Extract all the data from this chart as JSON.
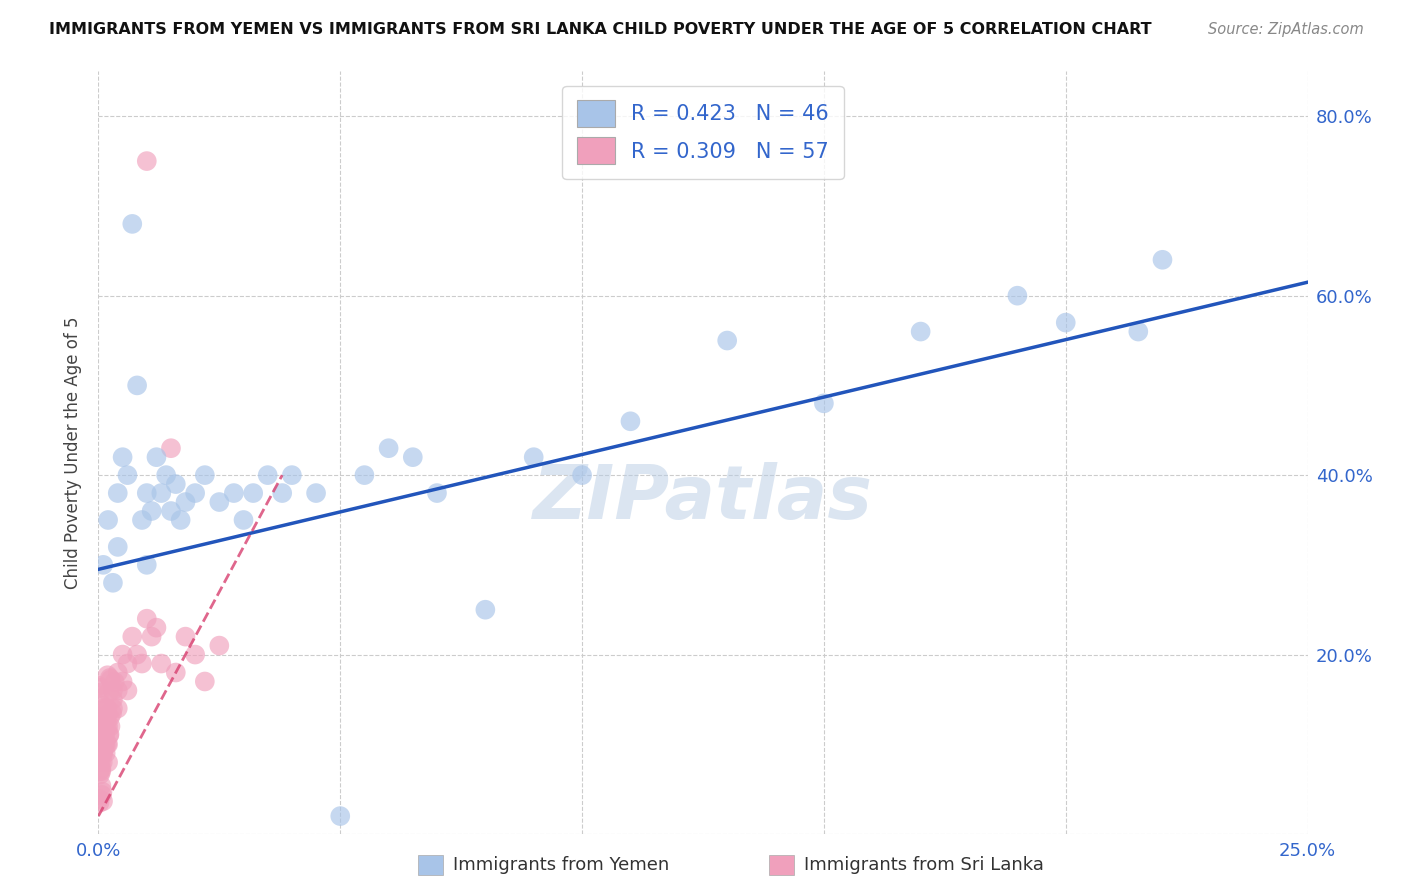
{
  "title": "IMMIGRANTS FROM YEMEN VS IMMIGRANTS FROM SRI LANKA CHILD POVERTY UNDER THE AGE OF 5 CORRELATION CHART",
  "source": "Source: ZipAtlas.com",
  "ylabel": "Child Poverty Under the Age of 5",
  "xlim": [
    0.0,
    0.25
  ],
  "ylim": [
    0.0,
    0.85
  ],
  "xtick_positions": [
    0.0,
    0.05,
    0.1,
    0.15,
    0.2,
    0.25
  ],
  "xtick_labels": [
    "0.0%",
    "",
    "",
    "",
    "",
    "25.0%"
  ],
  "ytick_positions": [
    0.0,
    0.2,
    0.4,
    0.6,
    0.8
  ],
  "ytick_labels": [
    "",
    "20.0%",
    "40.0%",
    "60.0%",
    "80.0%"
  ],
  "yemen_R": 0.423,
  "yemen_N": 46,
  "srilanka_R": 0.309,
  "srilanka_N": 57,
  "yemen_color": "#a8c4e8",
  "srilanka_color": "#f0a0bc",
  "yemen_line_color": "#2255bb",
  "srilanka_line_color": "#d84070",
  "watermark": "ZIPatlas",
  "yemen_x": [
    0.001,
    0.002,
    0.003,
    0.004,
    0.004,
    0.005,
    0.006,
    0.007,
    0.008,
    0.009,
    0.01,
    0.01,
    0.011,
    0.012,
    0.013,
    0.014,
    0.015,
    0.016,
    0.017,
    0.018,
    0.02,
    0.022,
    0.025,
    0.028,
    0.03,
    0.032,
    0.035,
    0.038,
    0.04,
    0.045,
    0.05,
    0.055,
    0.06,
    0.065,
    0.07,
    0.08,
    0.09,
    0.1,
    0.11,
    0.13,
    0.15,
    0.17,
    0.19,
    0.2,
    0.215,
    0.22
  ],
  "yemen_y": [
    0.3,
    0.35,
    0.28,
    0.38,
    0.32,
    0.42,
    0.4,
    0.68,
    0.5,
    0.35,
    0.38,
    0.3,
    0.36,
    0.42,
    0.38,
    0.4,
    0.36,
    0.39,
    0.35,
    0.37,
    0.38,
    0.4,
    0.37,
    0.38,
    0.35,
    0.38,
    0.4,
    0.38,
    0.4,
    0.38,
    0.02,
    0.4,
    0.43,
    0.42,
    0.38,
    0.25,
    0.42,
    0.4,
    0.46,
    0.55,
    0.48,
    0.56,
    0.6,
    0.57,
    0.56,
    0.64
  ],
  "srilanka_x": [
    0.0001,
    0.0001,
    0.0002,
    0.0002,
    0.0003,
    0.0003,
    0.0004,
    0.0004,
    0.0005,
    0.0005,
    0.0006,
    0.0006,
    0.0007,
    0.0008,
    0.0009,
    0.001,
    0.001,
    0.001,
    0.001,
    0.0012,
    0.0013,
    0.0014,
    0.0015,
    0.0016,
    0.0017,
    0.0018,
    0.0019,
    0.002,
    0.002,
    0.002,
    0.0022,
    0.0024,
    0.0025,
    0.003,
    0.003,
    0.003,
    0.004,
    0.004,
    0.004,
    0.005,
    0.005,
    0.006,
    0.006,
    0.007,
    0.008,
    0.009,
    0.01,
    0.011,
    0.012,
    0.013,
    0.015,
    0.016,
    0.018,
    0.02,
    0.022,
    0.025,
    0.01
  ],
  "srilanka_y": [
    0.1,
    0.08,
    0.12,
    0.09,
    0.07,
    0.11,
    0.1,
    0.13,
    0.08,
    0.11,
    0.07,
    0.12,
    0.09,
    0.1,
    0.08,
    0.13,
    0.11,
    0.09,
    0.14,
    0.12,
    0.1,
    0.11,
    0.09,
    0.13,
    0.12,
    0.1,
    0.14,
    0.12,
    0.1,
    0.08,
    0.11,
    0.13,
    0.12,
    0.16,
    0.15,
    0.14,
    0.18,
    0.16,
    0.14,
    0.2,
    0.17,
    0.19,
    0.16,
    0.22,
    0.2,
    0.19,
    0.24,
    0.22,
    0.23,
    0.19,
    0.43,
    0.18,
    0.22,
    0.2,
    0.17,
    0.21,
    0.75
  ],
  "yemen_line_x": [
    0.0,
    0.25
  ],
  "yemen_line_y": [
    0.295,
    0.615
  ],
  "srilanka_line_x": [
    0.0,
    0.038
  ],
  "srilanka_line_y": [
    0.02,
    0.4
  ]
}
